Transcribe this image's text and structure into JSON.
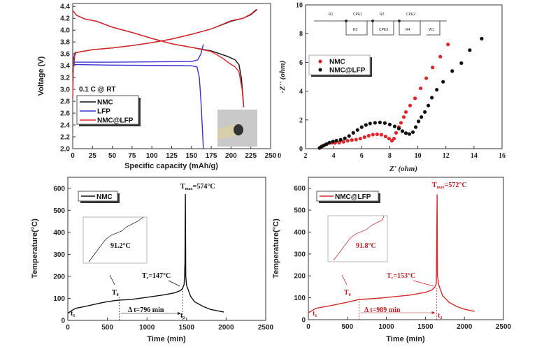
{
  "chart_data": [
    {
      "type": "line",
      "title": "",
      "xlabel": "Specific capacity (mAh/g)",
      "ylabel": "Voltage (V)",
      "xlim": [
        0,
        250
      ],
      "ylim": [
        2.0,
        4.45
      ],
      "xticks": [
        0,
        25,
        50,
        75,
        100,
        125,
        150,
        175,
        200,
        225,
        250
      ],
      "yticks": [
        2.0,
        2.2,
        2.4,
        2.6,
        2.8,
        3.0,
        3.2,
        3.4,
        3.6,
        3.8,
        4.0,
        4.2,
        4.4
      ],
      "condition_label": "0.1 C @ RT",
      "legend_position": "left",
      "series": [
        {
          "name": "NMC",
          "color": "#111111",
          "segments": [
            [
              [
                0,
                3.3
              ],
              [
                3,
                3.62
              ],
              [
                25,
                3.67
              ],
              [
                50,
                3.7
              ],
              [
                75,
                3.74
              ],
              [
                100,
                3.79
              ],
              [
                125,
                3.85
              ],
              [
                150,
                3.93
              ],
              [
                175,
                4.02
              ],
              [
                200,
                4.15
              ],
              [
                215,
                4.2
              ],
              [
                225,
                4.26
              ],
              [
                233,
                4.35
              ]
            ],
            [
              [
                0,
                4.33
              ],
              [
                5,
                4.25
              ],
              [
                15,
                4.19
              ],
              [
                30,
                4.15
              ],
              [
                50,
                4.05
              ],
              [
                75,
                3.96
              ],
              [
                100,
                3.86
              ],
              [
                125,
                3.77
              ],
              [
                150,
                3.71
              ],
              [
                175,
                3.65
              ],
              [
                195,
                3.56
              ],
              [
                205,
                3.5
              ],
              [
                210,
                3.42
              ],
              [
                213,
                3.2
              ],
              [
                215,
                2.9
              ],
              [
                216,
                2.7
              ]
            ]
          ]
        },
        {
          "name": "LFP",
          "color": "#3a2fd0",
          "segments": [
            [
              [
                0,
                3.35
              ],
              [
                2,
                3.46
              ],
              [
                50,
                3.46
              ],
              [
                150,
                3.47
              ],
              [
                158,
                3.5
              ],
              [
                162,
                3.6
              ],
              [
                165,
                3.76
              ]
            ],
            [
              [
                0,
                3.62
              ],
              [
                2,
                3.42
              ],
              [
                50,
                3.41
              ],
              [
                150,
                3.4
              ],
              [
                157,
                3.38
              ],
              [
                160,
                3.2
              ],
              [
                162,
                2.8
              ],
              [
                164,
                2.3
              ],
              [
                165,
                2.0
              ]
            ]
          ]
        },
        {
          "name": "NMC@LFP",
          "color": "#e0262a",
          "segments": [
            [
              [
                0,
                2.85
              ],
              [
                1,
                3.5
              ],
              [
                4,
                3.62
              ],
              [
                25,
                3.67
              ],
              [
                50,
                3.7
              ],
              [
                75,
                3.74
              ],
              [
                100,
                3.79
              ],
              [
                125,
                3.85
              ],
              [
                150,
                3.93
              ],
              [
                175,
                4.02
              ],
              [
                200,
                4.16
              ],
              [
                215,
                4.2
              ],
              [
                225,
                4.27
              ],
              [
                232,
                4.35
              ]
            ],
            [
              [
                0,
                4.33
              ],
              [
                5,
                4.25
              ],
              [
                15,
                4.19
              ],
              [
                30,
                4.15
              ],
              [
                50,
                4.05
              ],
              [
                75,
                3.96
              ],
              [
                100,
                3.86
              ],
              [
                125,
                3.77
              ],
              [
                150,
                3.71
              ],
              [
                175,
                3.64
              ],
              [
                190,
                3.52
              ],
              [
                198,
                3.44
              ],
              [
                205,
                3.38
              ],
              [
                210,
                3.3
              ],
              [
                214,
                3.0
              ],
              [
                216,
                2.7
              ]
            ]
          ]
        }
      ]
    },
    {
      "type": "scatter",
      "title": "",
      "xlabel": "Z' (ohm)",
      "ylabel": "-Z'' (ohm)",
      "xlim": [
        2,
        16
      ],
      "ylim": [
        0,
        10
      ],
      "xticks": [
        2,
        4,
        6,
        8,
        10,
        12,
        14,
        16
      ],
      "yticks": [
        0,
        2,
        4,
        6,
        8,
        10
      ],
      "x_extra_tick": "0",
      "legend_position": "upper-left",
      "circuit_labels": [
        "R1",
        "CPE1",
        "R2",
        "CPE2",
        "R3",
        "CPE3",
        "R4",
        "W1"
      ],
      "series": [
        {
          "name": "NMC",
          "color": "#e0262a",
          "points": [
            [
              3.0,
              0.05
            ],
            [
              3.1,
              0.12
            ],
            [
              3.2,
              0.18
            ],
            [
              3.35,
              0.25
            ],
            [
              3.5,
              0.32
            ],
            [
              3.7,
              0.4
            ],
            [
              3.9,
              0.42
            ],
            [
              4.1,
              0.4
            ],
            [
              4.4,
              0.42
            ],
            [
              4.7,
              0.48
            ],
            [
              5.0,
              0.55
            ],
            [
              5.3,
              0.6
            ],
            [
              5.6,
              0.63
            ],
            [
              5.9,
              0.7
            ],
            [
              6.2,
              0.8
            ],
            [
              6.5,
              0.9
            ],
            [
              6.8,
              0.98
            ],
            [
              7.1,
              1.0
            ],
            [
              7.4,
              0.97
            ],
            [
              7.7,
              0.85
            ],
            [
              7.95,
              0.7
            ],
            [
              8.15,
              0.55
            ],
            [
              8.3,
              0.7
            ],
            [
              8.45,
              1.1
            ],
            [
              8.65,
              1.5
            ],
            [
              8.8,
              1.8
            ],
            [
              9.0,
              2.2
            ],
            [
              9.15,
              2.55
            ],
            [
              9.45,
              3.0
            ],
            [
              9.8,
              3.5
            ],
            [
              10.2,
              4.2
            ],
            [
              10.6,
              4.9
            ],
            [
              11.05,
              5.65
            ],
            [
              11.6,
              6.4
            ],
            [
              12.15,
              7.25
            ]
          ]
        },
        {
          "name": "NMC@LFP",
          "color": "#111111",
          "points": [
            [
              3.0,
              0.05
            ],
            [
              3.15,
              0.15
            ],
            [
              3.3,
              0.22
            ],
            [
              3.5,
              0.32
            ],
            [
              3.7,
              0.42
            ],
            [
              3.95,
              0.5
            ],
            [
              4.2,
              0.56
            ],
            [
              4.5,
              0.62
            ],
            [
              4.8,
              0.72
            ],
            [
              5.1,
              0.88
            ],
            [
              5.4,
              1.1
            ],
            [
              5.7,
              1.3
            ],
            [
              6.0,
              1.5
            ],
            [
              6.3,
              1.65
            ],
            [
              6.6,
              1.75
            ],
            [
              6.95,
              1.8
            ],
            [
              7.3,
              1.82
            ],
            [
              7.65,
              1.78
            ],
            [
              8.0,
              1.68
            ],
            [
              8.35,
              1.55
            ],
            [
              8.65,
              1.4
            ],
            [
              8.9,
              1.22
            ],
            [
              9.15,
              1.08
            ],
            [
              9.4,
              1.02
            ],
            [
              9.65,
              1.15
            ],
            [
              9.85,
              1.5
            ],
            [
              10.05,
              1.9
            ],
            [
              10.25,
              2.2
            ],
            [
              10.5,
              2.55
            ],
            [
              10.75,
              3.0
            ],
            [
              11.0,
              3.55
            ],
            [
              11.35,
              4.1
            ],
            [
              11.8,
              4.65
            ],
            [
              12.45,
              5.4
            ],
            [
              13.1,
              5.95
            ],
            [
              13.7,
              6.85
            ],
            [
              14.55,
              7.65
            ]
          ]
        }
      ]
    },
    {
      "type": "line",
      "title": "",
      "xlabel": "Time (min)",
      "ylabel": "Temperature(°C)",
      "xlim": [
        0,
        2500
      ],
      "ylim": [
        0,
        650
      ],
      "xticks": [
        0,
        500,
        1000,
        1500,
        2000,
        2500
      ],
      "yticks": [
        0,
        100,
        200,
        300,
        400,
        500,
        600
      ],
      "legend_position": "upper-left",
      "series": [
        {
          "name": "NMC",
          "color": "#111111",
          "segments": [
            [
              [
                0,
                32
              ],
              [
                50,
                45
              ],
              [
                100,
                55
              ],
              [
                200,
                62
              ],
              [
                300,
                70
              ],
              [
                400,
                78
              ],
              [
                500,
                85
              ],
              [
                600,
                90
              ],
              [
                650,
                92
              ],
              [
                800,
                95
              ],
              [
                1000,
                105
              ],
              [
                1200,
                115
              ],
              [
                1350,
                125
              ],
              [
                1420,
                135
              ],
              [
                1450,
                145
              ],
              [
                1470,
                165
              ],
              [
                1480,
                260
              ],
              [
                1485,
                574
              ],
              [
                1490,
                200
              ],
              [
                1500,
                160
              ],
              [
                1550,
                110
              ],
              [
                1600,
                85
              ],
              [
                1700,
                65
              ],
              [
                1800,
                50
              ],
              [
                1970,
                38
              ]
            ]
          ]
        }
      ],
      "annotations": {
        "tmax": "T",
        "tmax_sub": "max",
        "tmax_value": "=574°C",
        "tc": "T",
        "tc_sub": "c",
        "tc_value": "=147°C",
        "t0": "T",
        "t0_sub": "0",
        "t1": "t",
        "t1_sub": "1",
        "t2": "t",
        "t2_sub": "2",
        "delta": "Δ t=796 min",
        "t1_x": 650,
        "t2_x": 1450,
        "inset_value": "91.2°C"
      },
      "color": "#111111"
    },
    {
      "type": "line",
      "title": "",
      "xlabel": "Time (min)",
      "ylabel": "Temperature(°C)",
      "xlim": [
        0,
        2500
      ],
      "ylim": [
        0,
        650
      ],
      "xticks": [
        0,
        500,
        1000,
        1500,
        2000,
        2500
      ],
      "yticks": [
        0,
        100,
        200,
        300,
        400,
        500,
        600
      ],
      "legend_position": "upper-left",
      "series": [
        {
          "name": "NMC@LFP",
          "color": "#d42a2a",
          "segments": [
            [
              [
                0,
                32
              ],
              [
                100,
                52
              ],
              [
                300,
                65
              ],
              [
                500,
                80
              ],
              [
                650,
                92
              ],
              [
                900,
                98
              ],
              [
                1100,
                105
              ],
              [
                1300,
                112
              ],
              [
                1500,
                125
              ],
              [
                1580,
                135
              ],
              [
                1620,
                148
              ],
              [
                1640,
                165
              ],
              [
                1650,
                572
              ],
              [
                1655,
                200
              ],
              [
                1670,
                160
              ],
              [
                1720,
                110
              ],
              [
                1800,
                80
              ],
              [
                1900,
                60
              ],
              [
                2000,
                48
              ],
              [
                2130,
                38
              ]
            ]
          ]
        }
      ],
      "annotations": {
        "tmax": "T",
        "tmax_sub": "max",
        "tmax_value": "=572°C",
        "tc": "T",
        "tc_sub": "c",
        "tc_value": "=153°C",
        "t0": "T",
        "t0_sub": "0",
        "t1": "t",
        "t1_sub": "1",
        "t2": "t",
        "t2_sub": "2",
        "delta": "Δ t=989 min",
        "t1_x": 650,
        "t2_x": 1645,
        "inset_value": "91.8°C"
      },
      "color": "#c02020"
    }
  ]
}
